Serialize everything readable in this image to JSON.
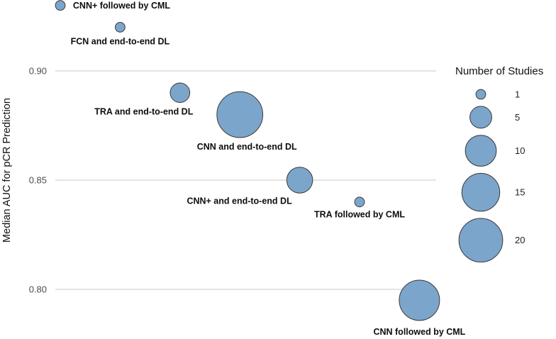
{
  "chart_data": {
    "type": "bubble",
    "title": "",
    "ylabel": "Median AUC for pCR Prediction",
    "xlabel": "",
    "ylim": [
      0.775,
      0.935
    ],
    "grid": "horizontal-only",
    "y_ticks": [
      {
        "value": 0.9,
        "label": "0.90"
      },
      {
        "value": 0.85,
        "label": "0.85"
      },
      {
        "value": 0.8,
        "label": "0.80"
      }
    ],
    "points": [
      {
        "label": "CNN+ followed by CML",
        "x": 1,
        "median_auc": 0.93,
        "studies": 1,
        "label_pos": "right"
      },
      {
        "label": "FCN and end-to-end DL",
        "x": 2,
        "median_auc": 0.92,
        "studies": 1,
        "label_pos": "below"
      },
      {
        "label": "TRA and end-to-end DL",
        "x": 3,
        "median_auc": 0.89,
        "studies": 4,
        "label_pos": "below",
        "label_dx": -51
      },
      {
        "label": "CNN and end-to-end DL",
        "x": 4,
        "median_auc": 0.88,
        "studies": 22,
        "label_pos": "below",
        "label_dx": 10
      },
      {
        "label": "CNN+ and end-to-end DL",
        "x": 5,
        "median_auc": 0.85,
        "studies": 7,
        "label_pos": "below",
        "label_dx": -85,
        "label_dy": 15
      },
      {
        "label": "TRA followed by CML",
        "x": 6,
        "median_auc": 0.84,
        "studies": 1,
        "label_pos": "below",
        "label_dy": 15
      },
      {
        "label": "CNN followed by CML",
        "x": 7,
        "median_auc": 0.795,
        "studies": 17,
        "label_pos": "below",
        "label_dy": 20
      }
    ],
    "legend": {
      "title": "Number of Studies",
      "sizes": [
        1,
        5,
        10,
        15,
        20
      ],
      "position": "right"
    },
    "colors": {
      "bubble_fill": "#7CA5CB",
      "bubble_stroke": "#3a3a3a",
      "gridline": "#d4d4d4",
      "tick_text": "#4d4d4d",
      "label_text": "#0d0d0d"
    }
  }
}
